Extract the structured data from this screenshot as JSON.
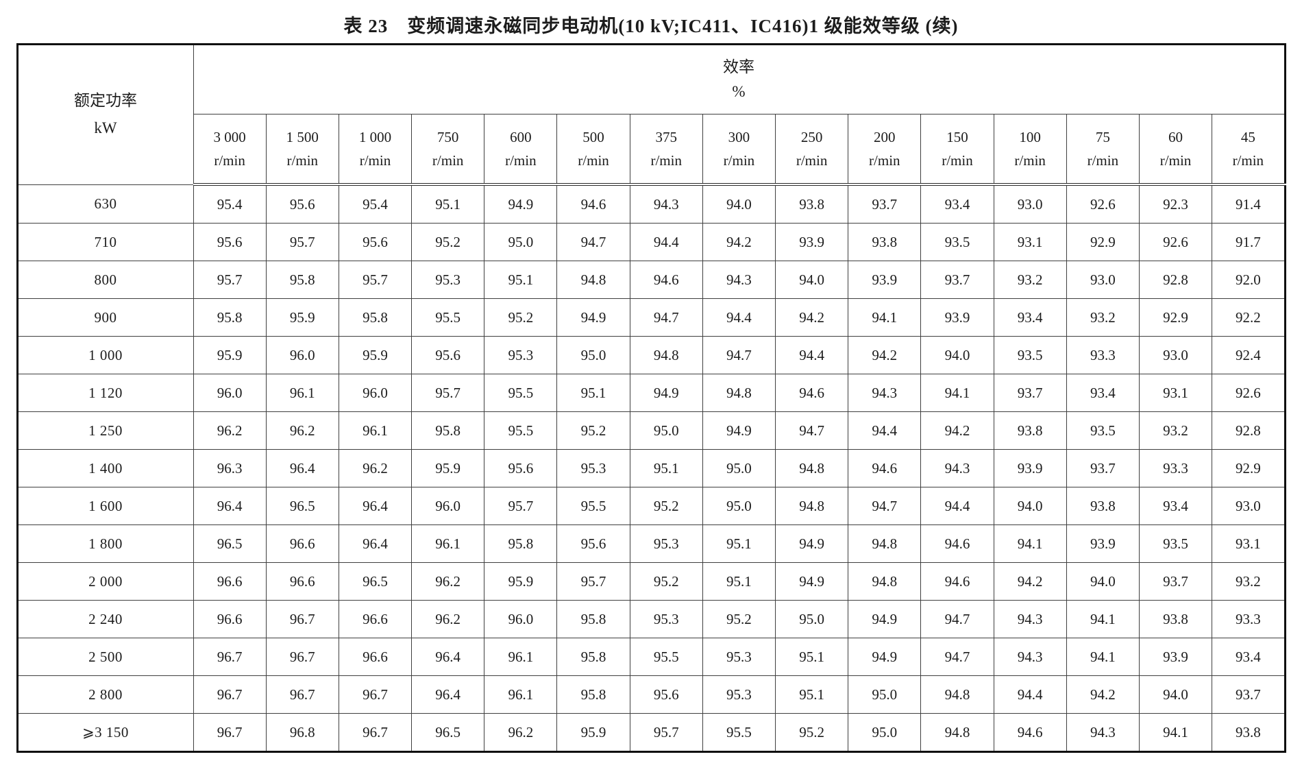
{
  "page": {
    "title": "表 23　变频调速永磁同步电动机(10 kV;IC411、IC416)1 级能效等级 (续)"
  },
  "table": {
    "power_header": {
      "line1": "额定功率",
      "line2": "kW"
    },
    "efficiency_header": {
      "line1": "效率",
      "line2": "%"
    },
    "speed_unit": "r/min",
    "speeds": [
      "3 000",
      "1 500",
      "1 000",
      "750",
      "600",
      "500",
      "375",
      "300",
      "250",
      "200",
      "150",
      "100",
      "75",
      "60",
      "45"
    ],
    "rows": [
      {
        "power": "630",
        "values": [
          "95.4",
          "95.6",
          "95.4",
          "95.1",
          "94.9",
          "94.6",
          "94.3",
          "94.0",
          "93.8",
          "93.7",
          "93.4",
          "93.0",
          "92.6",
          "92.3",
          "91.4"
        ]
      },
      {
        "power": "710",
        "values": [
          "95.6",
          "95.7",
          "95.6",
          "95.2",
          "95.0",
          "94.7",
          "94.4",
          "94.2",
          "93.9",
          "93.8",
          "93.5",
          "93.1",
          "92.9",
          "92.6",
          "91.7"
        ]
      },
      {
        "power": "800",
        "values": [
          "95.7",
          "95.8",
          "95.7",
          "95.3",
          "95.1",
          "94.8",
          "94.6",
          "94.3",
          "94.0",
          "93.9",
          "93.7",
          "93.2",
          "93.0",
          "92.8",
          "92.0"
        ]
      },
      {
        "power": "900",
        "values": [
          "95.8",
          "95.9",
          "95.8",
          "95.5",
          "95.2",
          "94.9",
          "94.7",
          "94.4",
          "94.2",
          "94.1",
          "93.9",
          "93.4",
          "93.2",
          "92.9",
          "92.2"
        ]
      },
      {
        "power": "1 000",
        "values": [
          "95.9",
          "96.0",
          "95.9",
          "95.6",
          "95.3",
          "95.0",
          "94.8",
          "94.7",
          "94.4",
          "94.2",
          "94.0",
          "93.5",
          "93.3",
          "93.0",
          "92.4"
        ]
      },
      {
        "power": "1 120",
        "values": [
          "96.0",
          "96.1",
          "96.0",
          "95.7",
          "95.5",
          "95.1",
          "94.9",
          "94.8",
          "94.6",
          "94.3",
          "94.1",
          "93.7",
          "93.4",
          "93.1",
          "92.6"
        ]
      },
      {
        "power": "1 250",
        "values": [
          "96.2",
          "96.2",
          "96.1",
          "95.8",
          "95.5",
          "95.2",
          "95.0",
          "94.9",
          "94.7",
          "94.4",
          "94.2",
          "93.8",
          "93.5",
          "93.2",
          "92.8"
        ]
      },
      {
        "power": "1 400",
        "values": [
          "96.3",
          "96.4",
          "96.2",
          "95.9",
          "95.6",
          "95.3",
          "95.1",
          "95.0",
          "94.8",
          "94.6",
          "94.3",
          "93.9",
          "93.7",
          "93.3",
          "92.9"
        ]
      },
      {
        "power": "1 600",
        "values": [
          "96.4",
          "96.5",
          "96.4",
          "96.0",
          "95.7",
          "95.5",
          "95.2",
          "95.0",
          "94.8",
          "94.7",
          "94.4",
          "94.0",
          "93.8",
          "93.4",
          "93.0"
        ]
      },
      {
        "power": "1 800",
        "values": [
          "96.5",
          "96.6",
          "96.4",
          "96.1",
          "95.8",
          "95.6",
          "95.3",
          "95.1",
          "94.9",
          "94.8",
          "94.6",
          "94.1",
          "93.9",
          "93.5",
          "93.1"
        ]
      },
      {
        "power": "2 000",
        "values": [
          "96.6",
          "96.6",
          "96.5",
          "96.2",
          "95.9",
          "95.7",
          "95.2",
          "95.1",
          "94.9",
          "94.8",
          "94.6",
          "94.2",
          "94.0",
          "93.7",
          "93.2"
        ]
      },
      {
        "power": "2 240",
        "values": [
          "96.6",
          "96.7",
          "96.6",
          "96.2",
          "96.0",
          "95.8",
          "95.3",
          "95.2",
          "95.0",
          "94.9",
          "94.7",
          "94.3",
          "94.1",
          "93.8",
          "93.3"
        ]
      },
      {
        "power": "2 500",
        "values": [
          "96.7",
          "96.7",
          "96.6",
          "96.4",
          "96.1",
          "95.8",
          "95.5",
          "95.3",
          "95.1",
          "94.9",
          "94.7",
          "94.3",
          "94.1",
          "93.9",
          "93.4"
        ]
      },
      {
        "power": "2 800",
        "values": [
          "96.7",
          "96.7",
          "96.7",
          "96.4",
          "96.1",
          "95.8",
          "95.6",
          "95.3",
          "95.1",
          "95.0",
          "94.8",
          "94.4",
          "94.2",
          "94.0",
          "93.7"
        ]
      },
      {
        "power": "⩾3 150",
        "values": [
          "96.7",
          "96.8",
          "96.7",
          "96.5",
          "96.2",
          "95.9",
          "95.7",
          "95.5",
          "95.2",
          "95.0",
          "94.8",
          "94.6",
          "94.3",
          "94.1",
          "93.8"
        ]
      }
    ]
  }
}
